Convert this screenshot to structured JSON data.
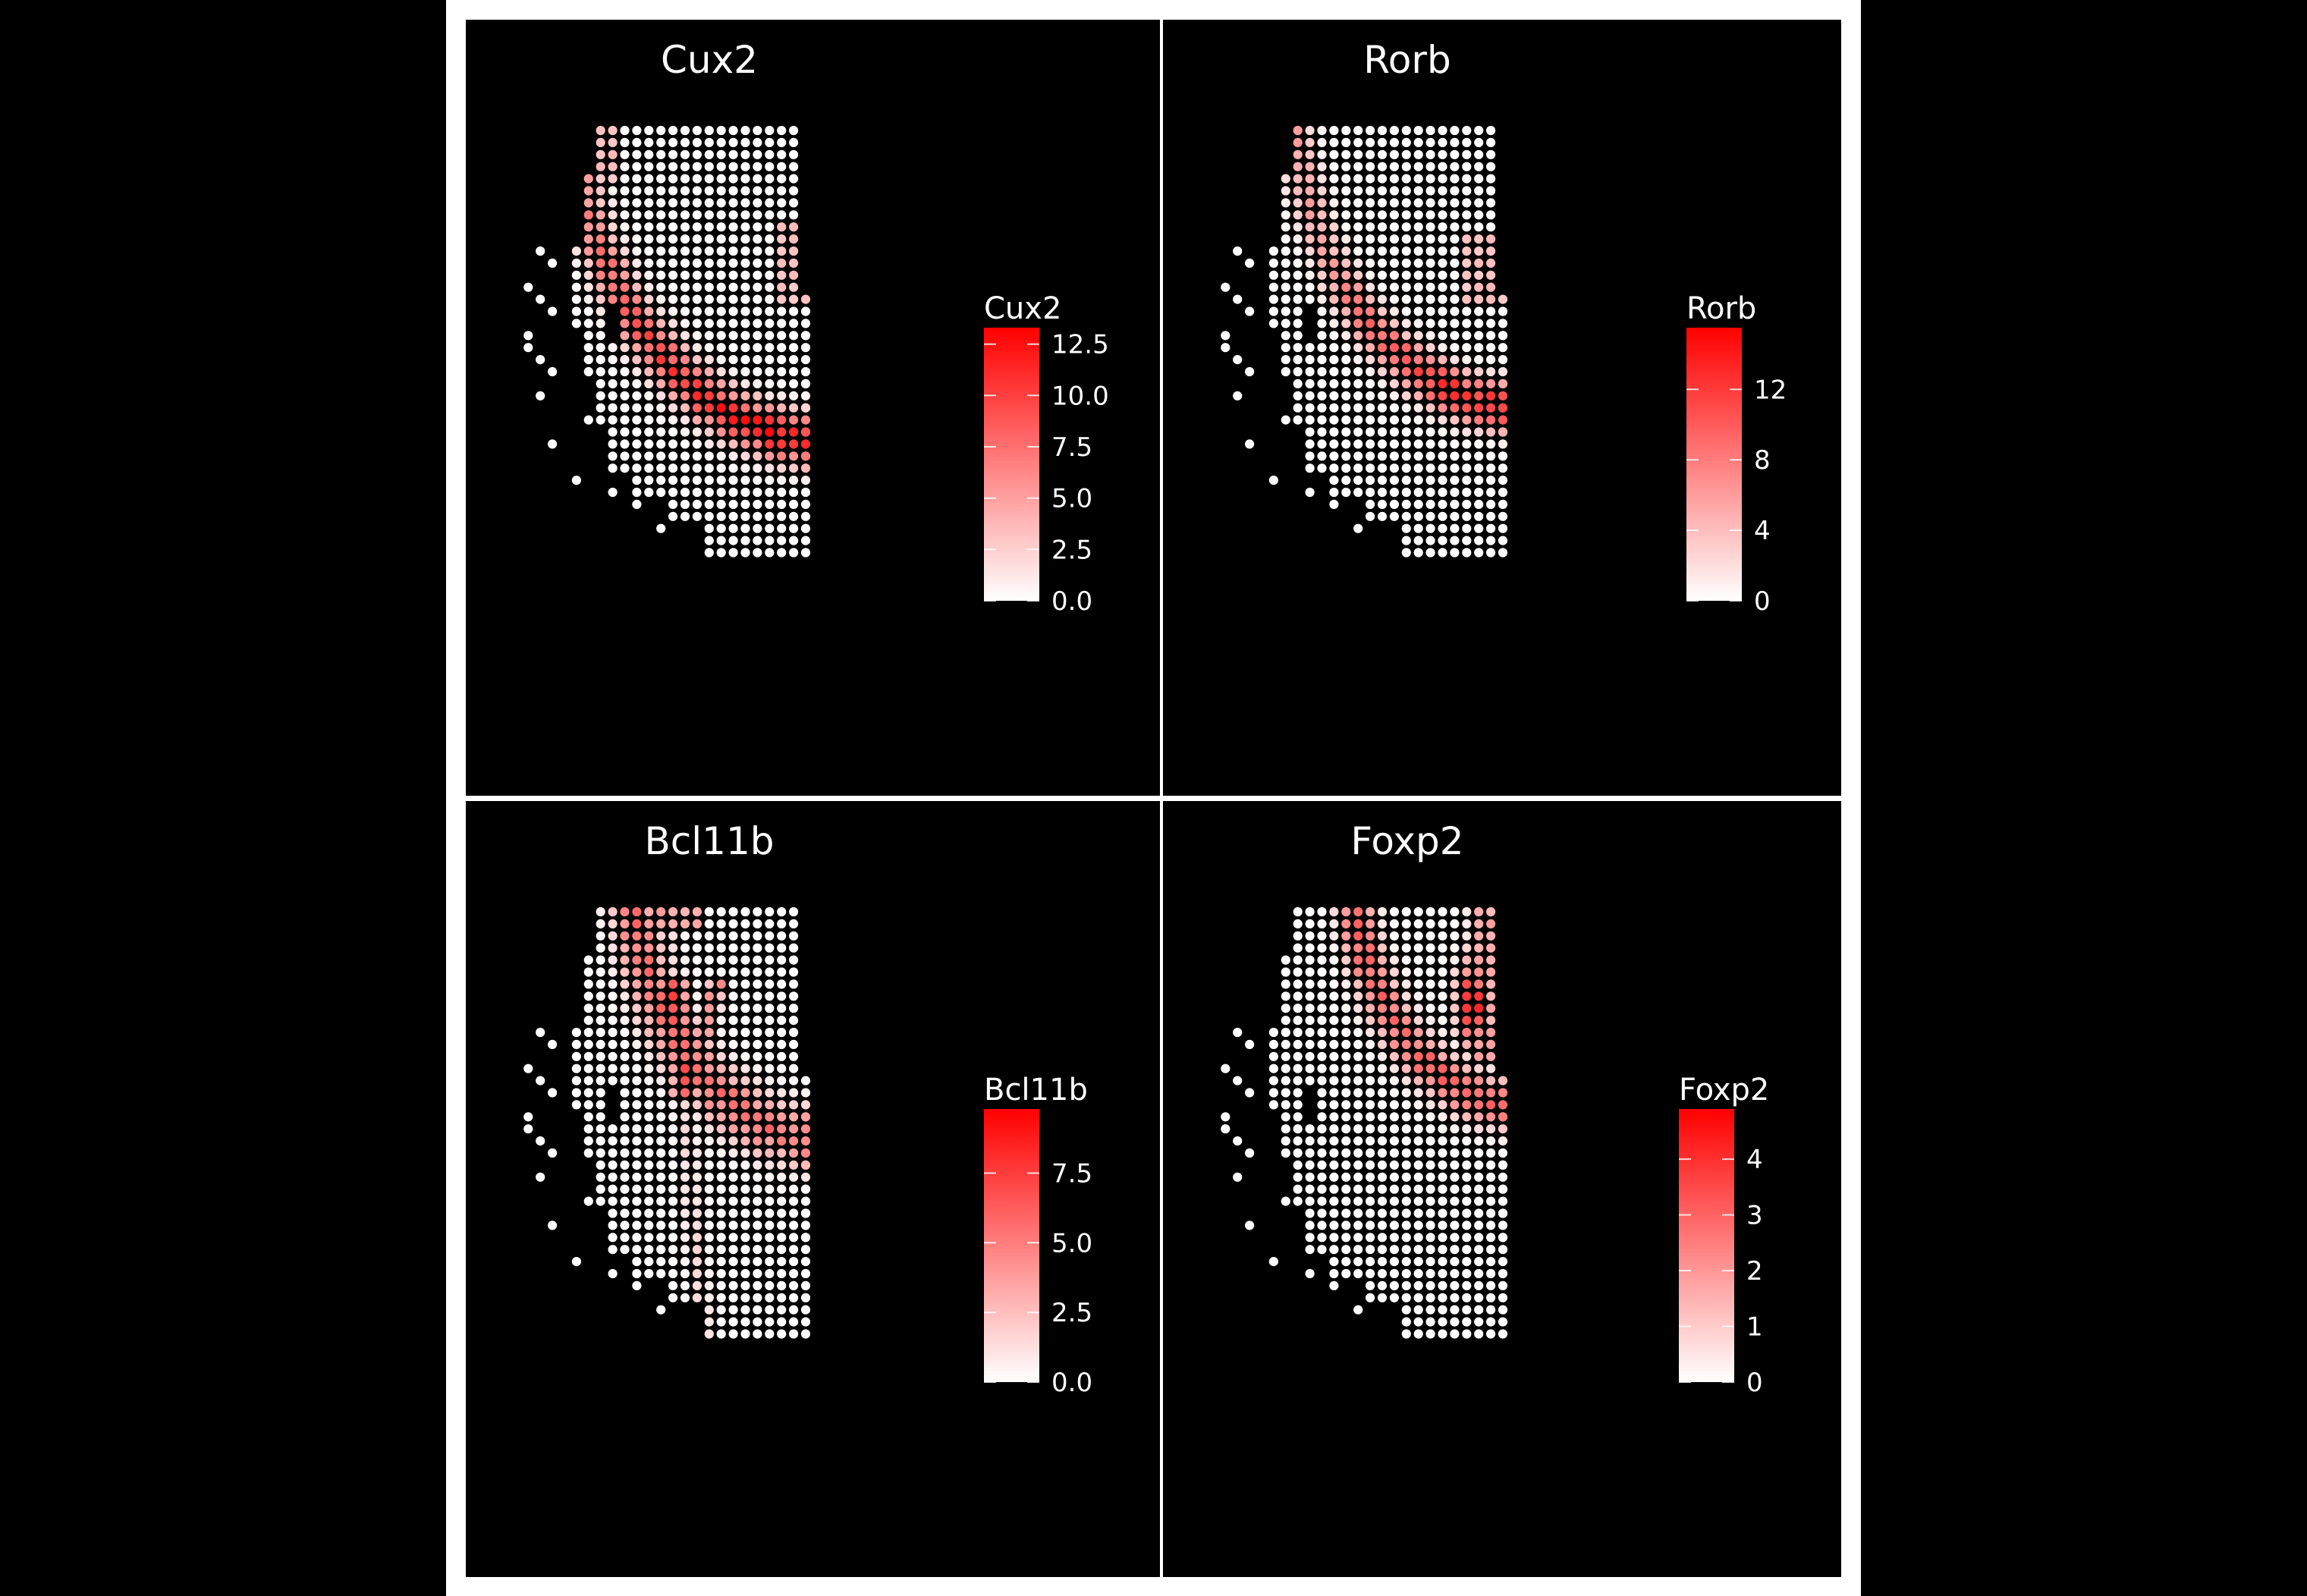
{
  "colors": {
    "background": "#000000",
    "panel_frame": "#ffffff",
    "spot_low": "#ffffff",
    "spot_high": "#ff0000",
    "text": "#ffffff"
  },
  "chart_data": [
    {
      "type": "spatial-feature-plot",
      "title": "Cux2",
      "legend": {
        "title": "Cux2",
        "position": "right",
        "limits": [
          0,
          13.3
        ],
        "ticks": [
          "0.0",
          "2.5",
          "5.0",
          "7.5",
          "10.0",
          "12.5"
        ]
      },
      "pattern": "band along outer curved edge (superficial cortical layer)"
    },
    {
      "type": "spatial-feature-plot",
      "title": "Rorb",
      "legend": {
        "title": "Rorb",
        "position": "right",
        "limits": [
          0,
          15.5
        ],
        "ticks": [
          "0",
          "4",
          "8",
          "12"
        ]
      },
      "pattern": "band one layer inward, peak near lower left"
    },
    {
      "type": "spatial-feature-plot",
      "title": "Bcl11b",
      "legend": {
        "title": "Bcl11b",
        "position": "right",
        "limits": [
          0,
          9.8
        ],
        "ticks": [
          "0.0",
          "2.5",
          "5.0",
          "7.5"
        ]
      },
      "pattern": "deep-layer band plus central streaks"
    },
    {
      "type": "spatial-feature-plot",
      "title": "Foxp2",
      "legend": {
        "title": "Foxp2",
        "position": "right",
        "limits": [
          0,
          4.9
        ],
        "ticks": [
          "0",
          "1",
          "2",
          "3",
          "4"
        ]
      },
      "pattern": "deepest band, peak near upper right"
    }
  ]
}
